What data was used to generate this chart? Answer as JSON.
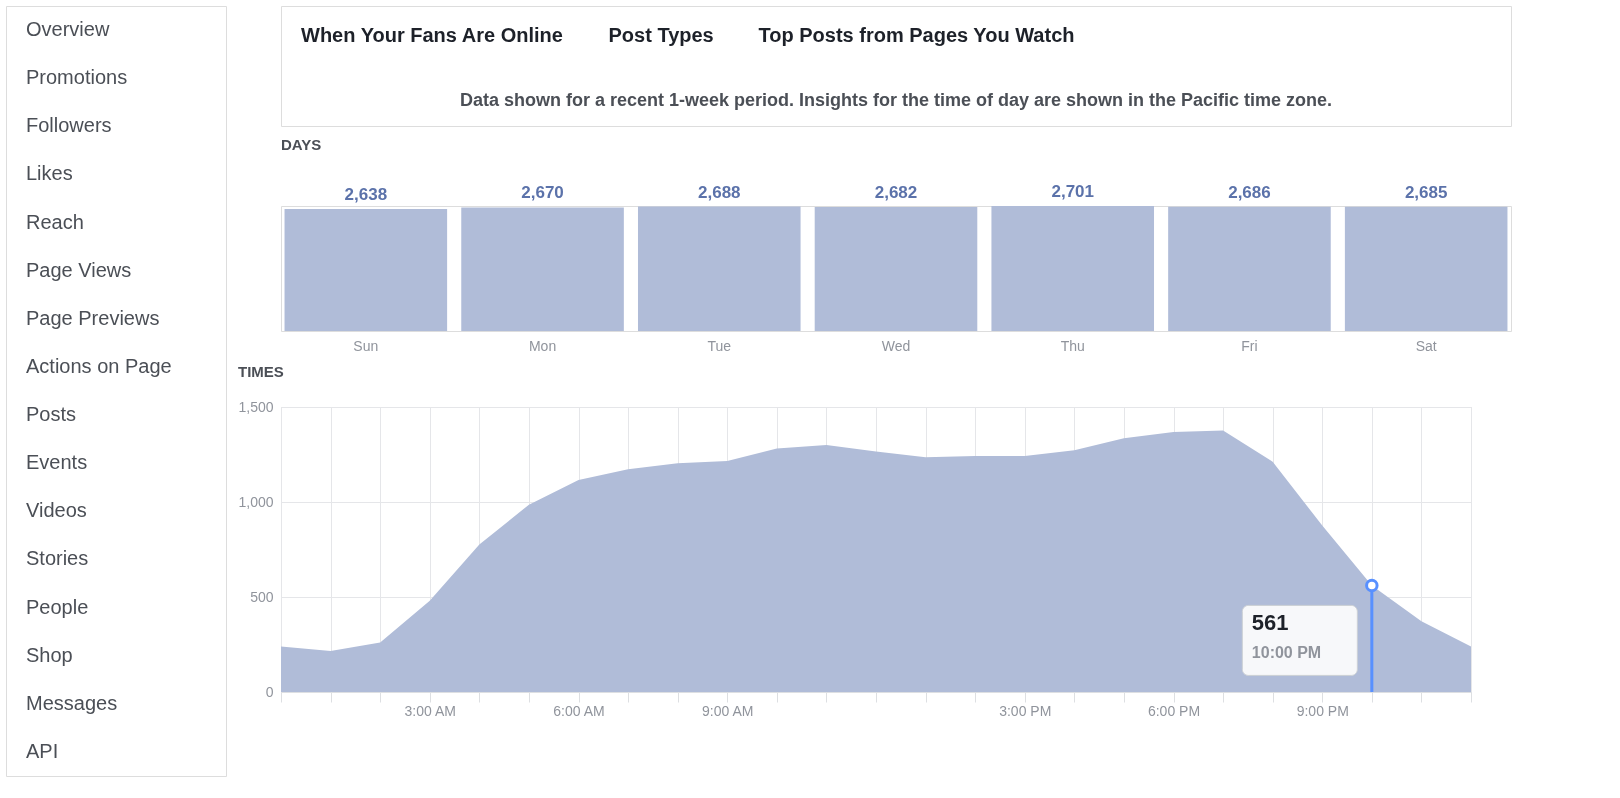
{
  "chart_data": [
    {
      "type": "other",
      "annotations": [
        "Overview",
        "Promotions",
        "Followers",
        "Likes",
        "Reach",
        "Page Views",
        "Page Previews",
        "Actions on Page",
        "Posts",
        "Events",
        "Videos",
        "Stories",
        "People",
        "Shop",
        "Messages",
        "API"
      ]
    },
    {
      "type": "other",
      "annotations": [
        "When Your Fans Are Online",
        "Post Types",
        "Top Posts from Pages You Watch"
      ],
      "subtitle": "Data shown for a recent 1-week period. Insights for the time of day are shown in the Pacific time zone."
    },
    {
      "type": "bar",
      "title": "DAYS",
      "categories": [
        "Sun",
        "Mon",
        "Tue",
        "Wed",
        "Thu",
        "Fri",
        "Sat"
      ],
      "values": [
        2638,
        2670,
        2688,
        2682,
        2701,
        2686,
        2685
      ],
      "value_labels": [
        "2,638",
        "2,670",
        "2,688",
        "2,682",
        "2,701",
        "2,686",
        "2,685"
      ],
      "color": "#b0bcd8",
      "grid": false,
      "tick_labels": "x"
    },
    {
      "type": "area",
      "title": "TIMES",
      "x": [
        0,
        1,
        2,
        3,
        4,
        5,
        6,
        7,
        8,
        9,
        10,
        11,
        12,
        13,
        14,
        15,
        16,
        17,
        18,
        19,
        20,
        21,
        22,
        23,
        24
      ],
      "values": [
        240,
        216,
        260,
        480,
        776,
        986,
        1116,
        1172,
        1204,
        1216,
        1282,
        1300,
        1266,
        1236,
        1242,
        1242,
        1272,
        1336,
        1368,
        1376,
        1212,
        876,
        561,
        372,
        240
      ],
      "color": "#b0bcd8",
      "xlim": [
        0,
        24
      ],
      "ylim": [
        0,
        1500
      ],
      "grid": true,
      "yticks": [
        0,
        500,
        {
          "value": 1000,
          "label": "1,000"
        },
        {
          "value": 1500,
          "label": "1,500"
        }
      ],
      "xticks": [
        {
          "value": 0,
          "label": null
        },
        {
          "value": 1,
          "label": null
        },
        {
          "value": 2,
          "label": null
        },
        {
          "value": 3,
          "label": "3:00 AM"
        },
        {
          "value": 4,
          "label": null
        },
        {
          "value": 5,
          "label": null
        },
        {
          "value": 6,
          "label": "6:00 AM"
        },
        {
          "value": 7,
          "label": null
        },
        {
          "value": 8,
          "label": null
        },
        {
          "value": 9,
          "label": "9:00 AM"
        },
        {
          "value": 10,
          "label": null
        },
        {
          "value": 11,
          "label": null
        },
        {
          "value": 12,
          "label": null
        },
        {
          "value": 13,
          "label": null
        },
        {
          "value": 14,
          "label": null
        },
        {
          "value": 15,
          "label": "3:00 PM"
        },
        {
          "value": 16,
          "label": null
        },
        {
          "value": 17,
          "label": null
        },
        {
          "value": 18,
          "label": "6:00 PM"
        },
        {
          "value": 19,
          "label": null
        },
        {
          "value": 20,
          "label": null
        },
        {
          "value": 21,
          "label": "9:00 PM"
        },
        {
          "value": 22,
          "label": null
        },
        {
          "value": 23,
          "label": null
        },
        {
          "value": 24,
          "label": null
        }
      ],
      "ref_lines": [
        {
          "axis": "x",
          "value": 22,
          "color": "#5890ff"
        }
      ],
      "annotations": [
        "561",
        "10:00 PM"
      ]
    }
  ]
}
